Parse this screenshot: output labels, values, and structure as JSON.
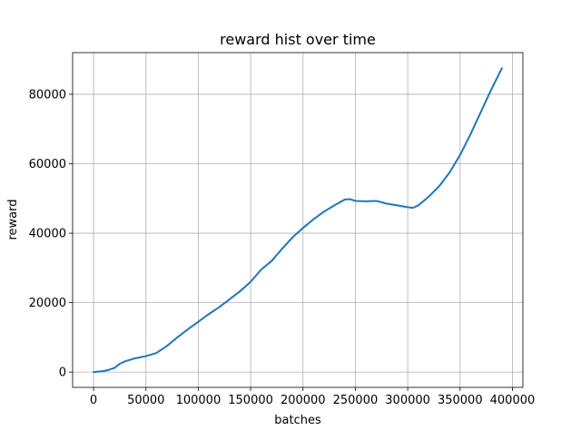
{
  "chart_data": {
    "type": "line",
    "title": "reward hist over time",
    "xlabel": "batches",
    "ylabel": "reward",
    "xlim": [
      -20000,
      410000
    ],
    "ylim": [
      -4400,
      92000
    ],
    "x_ticks": [
      0,
      50000,
      100000,
      150000,
      200000,
      250000,
      300000,
      350000,
      400000
    ],
    "y_ticks": [
      0,
      20000,
      40000,
      60000,
      80000
    ],
    "grid": true,
    "line_color": "#1f77b4",
    "grid_color": "#b0b0b0",
    "series": [
      {
        "name": "",
        "x": [
          0,
          10000,
          15000,
          20000,
          25000,
          30000,
          40000,
          50000,
          60000,
          70000,
          80000,
          90000,
          100000,
          110000,
          120000,
          130000,
          140000,
          150000,
          160000,
          170000,
          180000,
          190000,
          200000,
          210000,
          220000,
          230000,
          240000,
          245000,
          250000,
          260000,
          270000,
          280000,
          290000,
          300000,
          305000,
          310000,
          320000,
          330000,
          340000,
          350000,
          360000,
          370000,
          380000,
          390000
        ],
        "y": [
          0,
          300,
          700,
          1200,
          2400,
          3100,
          4000,
          4600,
          5500,
          7500,
          10000,
          12300,
          14500,
          16700,
          18700,
          21000,
          23300,
          26000,
          29500,
          32000,
          35500,
          38800,
          41500,
          44000,
          46200,
          48000,
          49700,
          49800,
          49300,
          49200,
          49300,
          48500,
          48000,
          47500,
          47300,
          48000,
          50500,
          53500,
          57500,
          62500,
          68500,
          75000,
          81500,
          87500
        ]
      }
    ]
  }
}
